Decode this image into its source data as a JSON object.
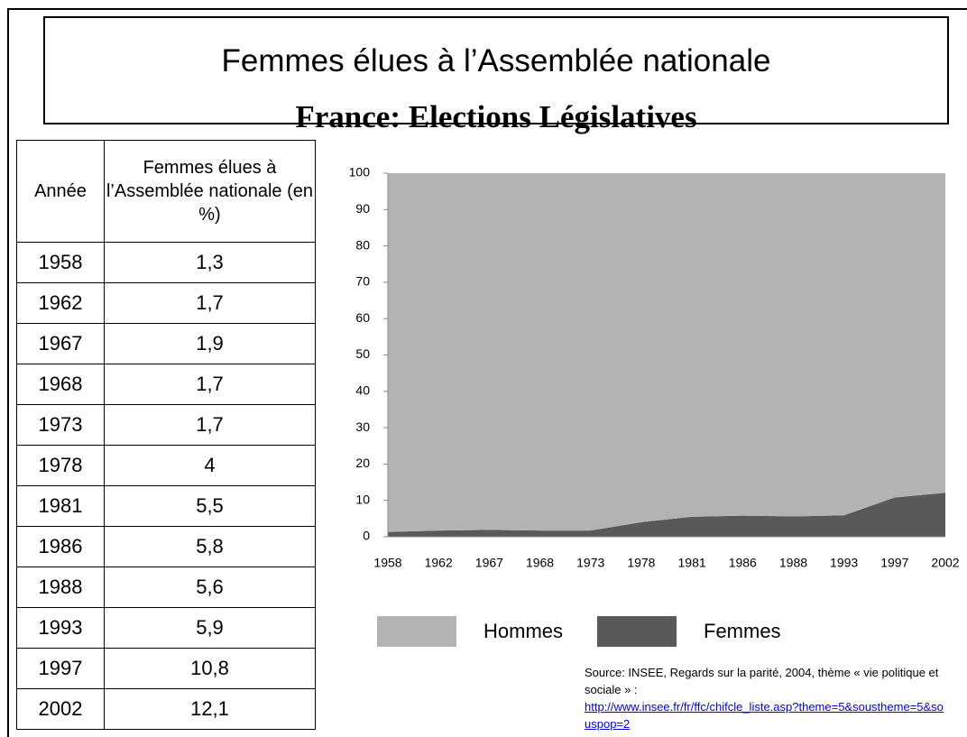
{
  "header": {
    "title": "Femmes élues à l’Assemblée nationale",
    "subtitle": "France: Elections Législatives"
  },
  "table": {
    "columns": [
      "Année",
      "Femmes élues à l’Assemblée nationale (en %)"
    ],
    "rows": [
      [
        "1958",
        "1,3"
      ],
      [
        "1962",
        "1,7"
      ],
      [
        "1967",
        "1,9"
      ],
      [
        "1968",
        "1,7"
      ],
      [
        "1973",
        "1,7"
      ],
      [
        "1978",
        "4"
      ],
      [
        "1981",
        "5,5"
      ],
      [
        "1986",
        "5,8"
      ],
      [
        "1988",
        "5,6"
      ],
      [
        "1993",
        "5,9"
      ],
      [
        "1997",
        "10,8"
      ],
      [
        "2002",
        "12,1"
      ]
    ]
  },
  "chart_data": {
    "type": "area",
    "stacked": true,
    "categories": [
      "1958",
      "1962",
      "1967",
      "1968",
      "1973",
      "1978",
      "1981",
      "1986",
      "1988",
      "1993",
      "1997",
      "2002"
    ],
    "series": [
      {
        "name": "Hommes",
        "color": "#b3b3b3",
        "values": [
          98.7,
          98.3,
          98.1,
          98.3,
          98.3,
          96,
          94.5,
          94.2,
          94.4,
          94.1,
          89.2,
          87.9
        ]
      },
      {
        "name": "Femmes",
        "color": "#595959",
        "values": [
          1.3,
          1.7,
          1.9,
          1.7,
          1.7,
          4,
          5.5,
          5.8,
          5.6,
          5.9,
          10.8,
          12.1
        ]
      }
    ],
    "ylim": [
      0,
      100
    ],
    "yticks": [
      0,
      10,
      20,
      30,
      40,
      50,
      60,
      70,
      80,
      90,
      100
    ]
  },
  "source": {
    "text": "Source: INSEE, Regards sur la parité, 2004, thème « vie politique et sociale » :",
    "link": "http://www.insee.fr/fr/ffc/chifcle_liste.asp?theme=5&soustheme=5&souspop=2"
  }
}
